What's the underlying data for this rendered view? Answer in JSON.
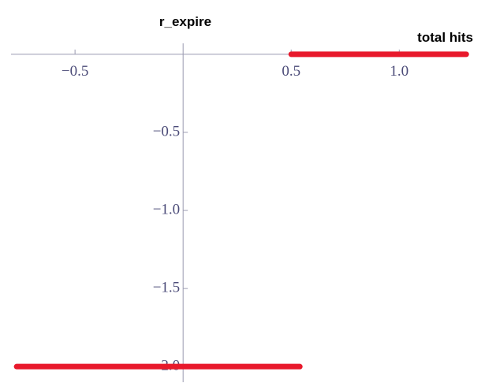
{
  "chart_data": {
    "type": "line",
    "xlabel": "total hits",
    "ylabel": "r_expire",
    "xlim": [
      -0.796,
      1.32
    ],
    "ylim": [
      -2.1,
      0.07
    ],
    "xticks": [
      {
        "value": -0.5,
        "label": "−0.5"
      },
      0.5,
      {
        "value": 1.0,
        "label": "1.0"
      }
    ],
    "yticks": [
      {
        "value": -0.5,
        "label": "−0.5"
      },
      {
        "value": -1.0,
        "label": "−1.0"
      },
      {
        "value": -1.5,
        "label": "−1.5"
      },
      {
        "value": -2.0,
        "label": "−2.0"
      }
    ],
    "series": [
      {
        "color": "#e8192c",
        "x": [
          -0.77,
          0.54
        ],
        "values": [
          -2,
          -2
        ]
      },
      {
        "color": "#e8192c",
        "x": [
          0.5,
          1.31
        ],
        "values": [
          0,
          0
        ]
      }
    ]
  }
}
